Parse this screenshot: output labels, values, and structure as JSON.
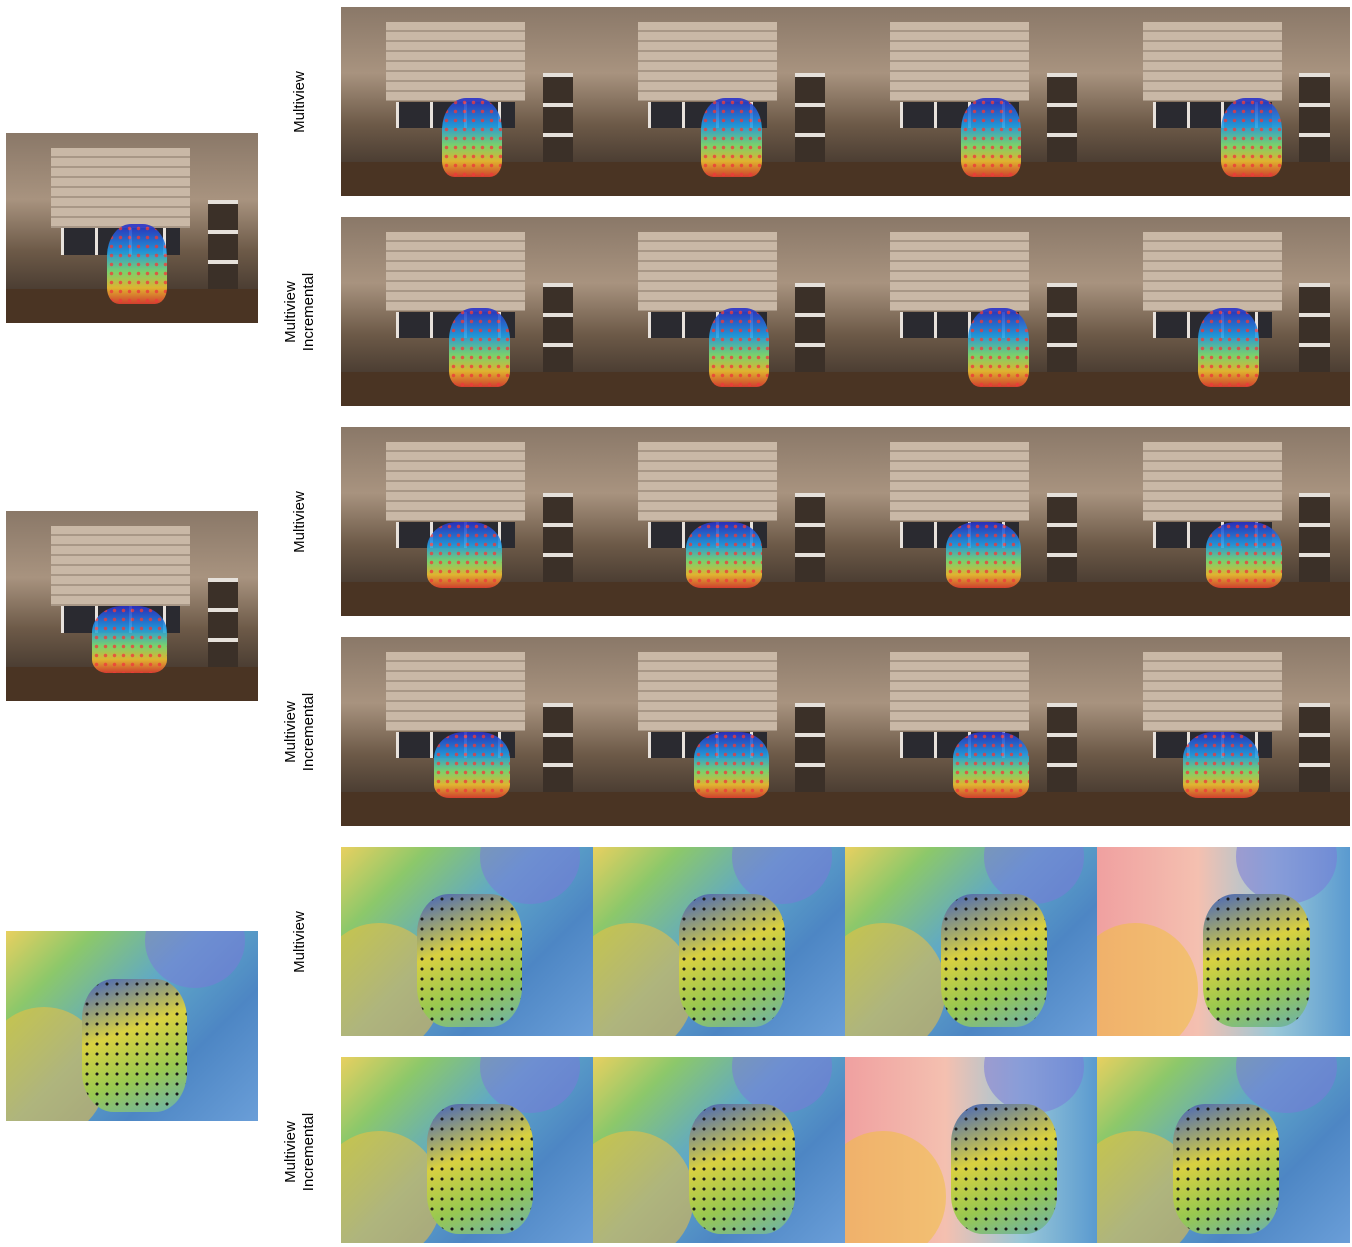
{
  "groups": [
    {
      "rows": [
        {
          "label": [
            "Multiview"
          ]
        },
        {
          "label": [
            "Multiview",
            "Incremental"
          ]
        }
      ]
    },
    {
      "rows": [
        {
          "label": [
            "Multiview"
          ]
        },
        {
          "label": [
            "Multiview",
            "Incremental"
          ]
        }
      ]
    },
    {
      "rows": [
        {
          "label": [
            "Multiview"
          ]
        },
        {
          "label": [
            "Multiview",
            "Incremental"
          ]
        }
      ]
    }
  ]
}
